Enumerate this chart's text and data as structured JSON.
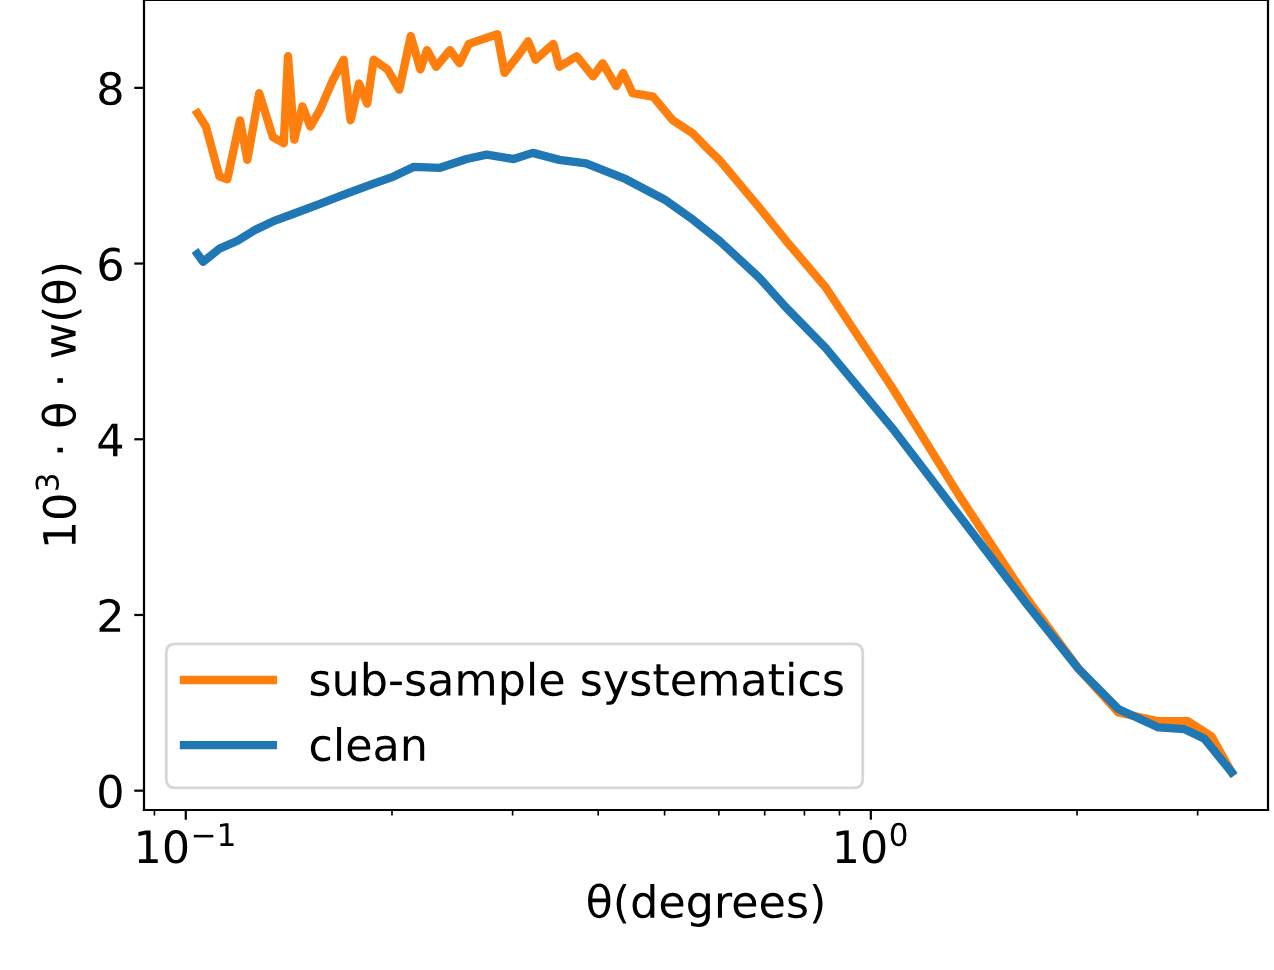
{
  "chart_data": {
    "type": "line",
    "xlabel": "θ(degrees)",
    "ylabel": "10$^{3}$ · θ · w(θ)",
    "log": "x",
    "xlim": [
      0.0869,
      3.8
    ],
    "ylim": [
      -0.22,
      9.0
    ],
    "xticks": [
      {
        "value": 0.1,
        "label": "10$^{−1}$"
      },
      {
        "value": 1,
        "label": "10$^{0}$"
      }
    ],
    "yticks": [
      0,
      2,
      4,
      6,
      8
    ],
    "legend": "bottom left",
    "grid": false,
    "marker": "none",
    "line_style": "solid",
    "series": [
      {
        "name": "sub-sample systematics",
        "color": "#ff7f0e",
        "x": [
          0.104,
          0.107,
          0.112,
          0.115,
          0.12,
          0.123,
          0.128,
          0.134,
          0.139,
          0.141,
          0.144,
          0.148,
          0.152,
          0.157,
          0.164,
          0.17,
          0.174,
          0.179,
          0.184,
          0.188,
          0.197,
          0.205,
          0.213,
          0.22,
          0.225,
          0.232,
          0.243,
          0.251,
          0.259,
          0.285,
          0.292,
          0.307,
          0.316,
          0.324,
          0.344,
          0.351,
          0.372,
          0.393,
          0.406,
          0.425,
          0.435,
          0.449,
          0.481,
          0.514,
          0.55,
          0.574,
          0.601,
          0.687,
          0.752,
          0.859,
          1.074,
          1.343,
          1.679,
          2.009,
          2.297,
          2.63,
          2.904,
          3.142,
          3.363
        ],
        "values": [
          7.71,
          7.56,
          6.99,
          6.96,
          7.63,
          7.18,
          7.94,
          7.44,
          7.37,
          8.36,
          7.41,
          7.79,
          7.56,
          7.75,
          8.09,
          8.32,
          7.63,
          8.05,
          7.82,
          8.32,
          8.21,
          7.98,
          8.59,
          8.21,
          8.43,
          8.24,
          8.43,
          8.28,
          8.5,
          8.61,
          8.17,
          8.39,
          8.53,
          8.32,
          8.5,
          8.24,
          8.36,
          8.13,
          8.28,
          8.02,
          8.17,
          7.94,
          7.9,
          7.63,
          7.48,
          7.33,
          7.18,
          6.64,
          6.26,
          5.73,
          4.59,
          3.37,
          2.22,
          1.39,
          0.89,
          0.79,
          0.79,
          0.62,
          0.21
        ]
      },
      {
        "name": "clean",
        "color": "#1f77b4",
        "x": [
          0.104,
          0.106,
          0.112,
          0.119,
          0.126,
          0.134,
          0.144,
          0.157,
          0.172,
          0.188,
          0.201,
          0.215,
          0.235,
          0.257,
          0.275,
          0.301,
          0.321,
          0.351,
          0.384,
          0.439,
          0.502,
          0.55,
          0.601,
          0.687,
          0.752,
          0.859,
          1.074,
          1.343,
          1.679,
          2.009,
          2.297,
          2.63,
          2.872,
          3.07,
          3.363
        ],
        "values": [
          6.11,
          6.02,
          6.17,
          6.26,
          6.38,
          6.48,
          6.57,
          6.68,
          6.8,
          6.91,
          6.99,
          7.1,
          7.09,
          7.19,
          7.24,
          7.19,
          7.26,
          7.18,
          7.14,
          6.96,
          6.72,
          6.5,
          6.26,
          5.84,
          5.5,
          5.04,
          4.13,
          3.14,
          2.15,
          1.39,
          0.93,
          0.72,
          0.7,
          0.59,
          0.21
        ]
      }
    ]
  }
}
